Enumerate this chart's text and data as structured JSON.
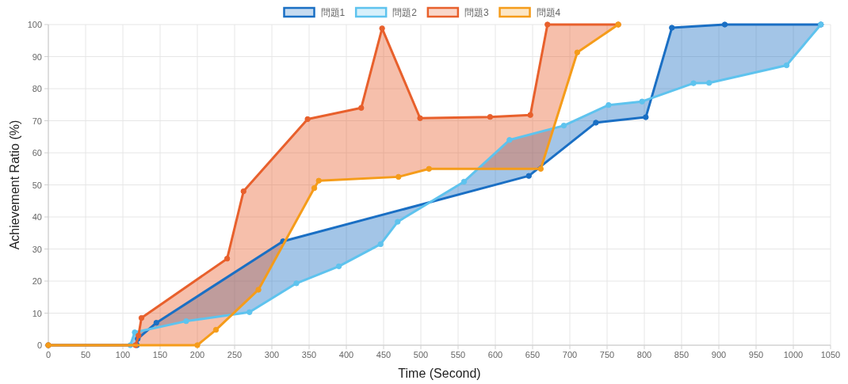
{
  "chart_data": {
    "type": "line",
    "xlabel": "Time (Second)",
    "ylabel": "Achievement Ratio (%)",
    "xlim": [
      0,
      1050
    ],
    "xticks": [
      0,
      50,
      100,
      150,
      200,
      250,
      300,
      350,
      400,
      450,
      500,
      550,
      600,
      650,
      700,
      750,
      800,
      850,
      900,
      950,
      1000,
      1050
    ],
    "ylim": [
      0,
      100
    ],
    "yticks": [
      0,
      10,
      20,
      30,
      40,
      50,
      60,
      70,
      80,
      90,
      100
    ],
    "grid": true,
    "legend": "top",
    "marker": "circle",
    "line_style": "solid",
    "series": [
      {
        "name": "問題1",
        "color": "#1a6fc4",
        "x": [
          0,
          119,
          120,
          145,
          315,
          645,
          735,
          802,
          837,
          908,
          1037
        ],
        "values": [
          0,
          0,
          2,
          7,
          32.4,
          52.8,
          69.4,
          71.1,
          99,
          100,
          100
        ]
      },
      {
        "name": "問題2",
        "color": "#5ec3ee",
        "x": [
          0,
          110,
          116,
          185,
          270,
          333,
          390,
          446,
          469,
          558,
          619,
          692,
          752,
          797,
          866,
          887,
          991,
          1037
        ],
        "values": [
          0,
          0,
          4,
          7.5,
          10.3,
          19.3,
          24.6,
          31.5,
          38.5,
          51,
          64,
          68.5,
          74.9,
          76,
          81.7,
          81.8,
          87.3,
          100
        ]
      },
      {
        "name": "問題3",
        "color": "#e8602c",
        "x": [
          0,
          117,
          121,
          125,
          240,
          262,
          348,
          420,
          448,
          499,
          593,
          647,
          670,
          765
        ],
        "values": [
          0,
          0,
          3,
          8.5,
          27,
          48,
          70.5,
          74,
          98.8,
          70.8,
          71.2,
          71.8,
          100,
          100
        ]
      },
      {
        "name": "問題4",
        "color": "#f59c1a",
        "x": [
          0,
          200,
          225,
          282,
          357,
          363,
          470,
          511,
          661,
          710,
          765
        ],
        "values": [
          0,
          0,
          4.8,
          17.3,
          49,
          51.3,
          52.5,
          55,
          55,
          91.3,
          100
        ]
      }
    ]
  }
}
